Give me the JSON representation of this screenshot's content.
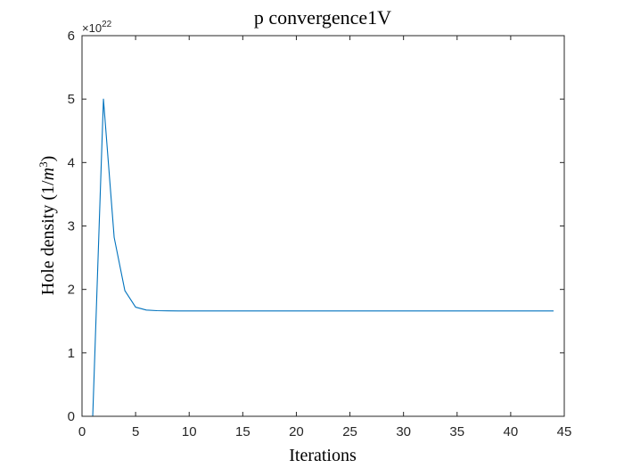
{
  "chart_data": {
    "type": "line",
    "title": "p convergence1V",
    "xlabel": "Iterations",
    "ylabel": {
      "prefix": "Hole density (1/",
      "unit_base": "m",
      "unit_exp": "3",
      "suffix": ")"
    },
    "xlim": [
      0,
      45
    ],
    "ylim": [
      0,
      6
    ],
    "x_ticks": [
      0,
      5,
      10,
      15,
      20,
      25,
      30,
      35,
      40,
      45
    ],
    "y_ticks": [
      0,
      1,
      2,
      3,
      4,
      5,
      6
    ],
    "y_exponent": {
      "multiplier": "×10",
      "power": "22"
    },
    "grid": false,
    "series": [
      {
        "color": "#0072BD",
        "x": [
          1,
          2,
          3,
          4,
          5,
          6,
          7,
          8,
          9,
          10,
          11,
          12,
          13,
          14,
          15,
          16,
          17,
          18,
          19,
          20,
          21,
          22,
          23,
          24,
          25,
          26,
          27,
          28,
          29,
          30,
          31,
          32,
          33,
          34,
          35,
          36,
          37,
          38,
          39,
          40,
          41,
          42,
          43,
          44
        ],
        "y": [
          0,
          5.0,
          2.82,
          1.98,
          1.72,
          1.675,
          1.665,
          1.662,
          1.661,
          1.66,
          1.66,
          1.66,
          1.66,
          1.66,
          1.66,
          1.66,
          1.66,
          1.66,
          1.66,
          1.66,
          1.66,
          1.66,
          1.66,
          1.66,
          1.66,
          1.66,
          1.66,
          1.66,
          1.66,
          1.66,
          1.66,
          1.66,
          1.66,
          1.66,
          1.66,
          1.66,
          1.66,
          1.66,
          1.66,
          1.66,
          1.66,
          1.66,
          1.66,
          1.66
        ]
      }
    ]
  }
}
